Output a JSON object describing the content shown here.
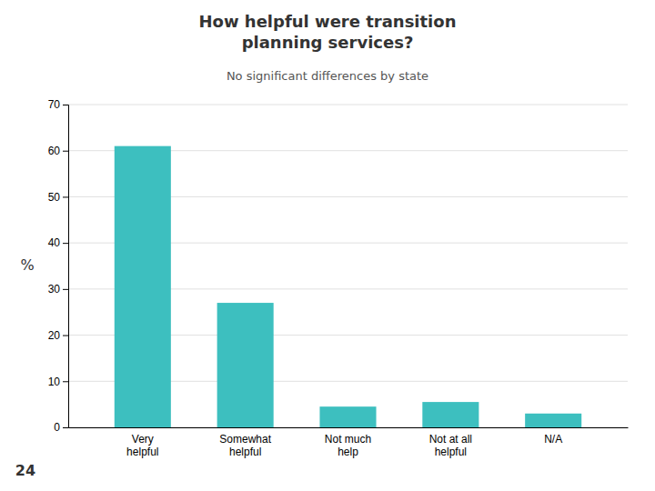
{
  "chart_data": {
    "type": "bar",
    "title": "How helpful were transition\nplanning services?",
    "subtitle": "No significant differences by state",
    "categories": [
      "Very\nhelpful",
      "Somewhat\nhelpful",
      "Not much\nhelp",
      "Not at all\nhelpful",
      "N/A"
    ],
    "values": [
      61,
      27,
      4.5,
      5.5,
      3
    ],
    "color": "#3dbfbf",
    "ylabel": "%",
    "ylim": [
      0,
      70
    ],
    "yticks": [
      0,
      10,
      20,
      30,
      40,
      50,
      60,
      70
    ],
    "grid": true,
    "annotations": [
      "24"
    ]
  }
}
